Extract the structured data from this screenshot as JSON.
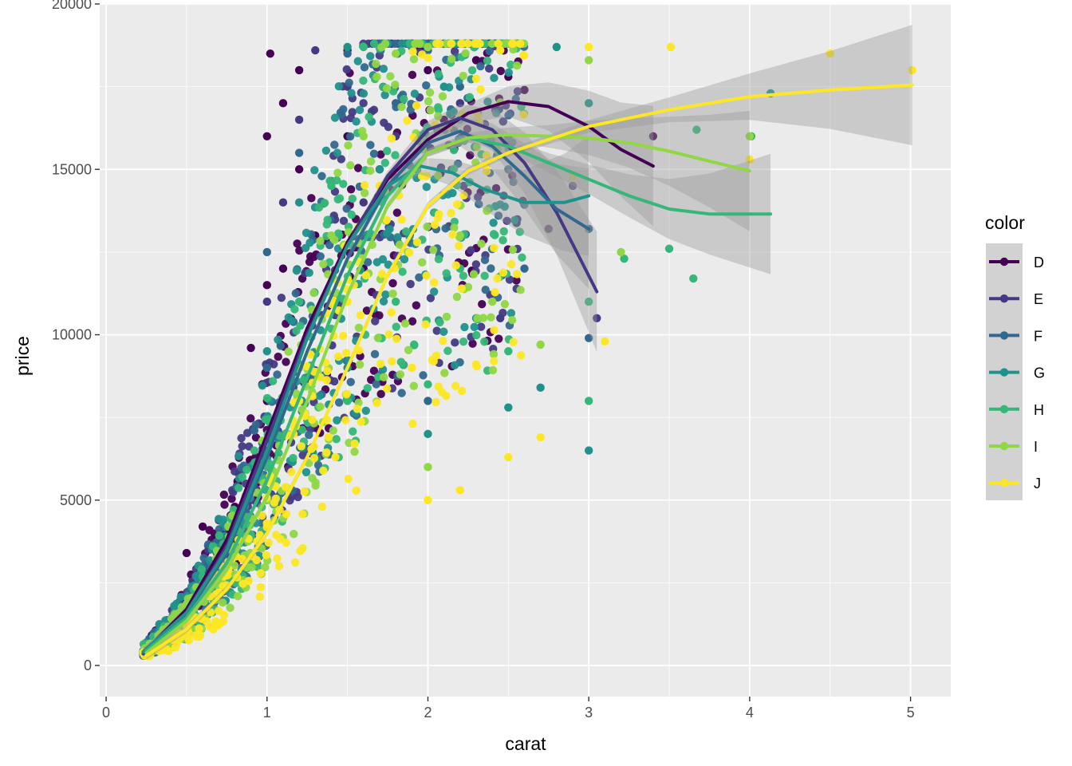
{
  "chart_data": {
    "type": "scatter",
    "xlabel": "carat",
    "ylabel": "price",
    "xlim": [
      -0.04,
      5.25
    ],
    "ylim": [
      -940,
      20000
    ],
    "x_ticks": [
      0,
      1,
      2,
      3,
      4,
      5
    ],
    "y_ticks": [
      0,
      5000,
      10000,
      15000,
      20000
    ],
    "x_tick_labels": [
      "0",
      "1",
      "2",
      "3",
      "4",
      "5"
    ],
    "y_tick_labels": [
      "0",
      "5000",
      "10000",
      "15000",
      "20000"
    ],
    "grid": true,
    "legend": {
      "title": "color",
      "position": "right"
    },
    "series": [
      {
        "name": "D",
        "color": "#440154",
        "points": [
          [
            0.23,
            380
          ],
          [
            0.3,
            600
          ],
          [
            0.4,
            1000
          ],
          [
            0.5,
            2000
          ],
          [
            0.5,
            3400
          ],
          [
            0.6,
            4200
          ],
          [
            0.7,
            3500
          ],
          [
            0.8,
            4800
          ],
          [
            0.9,
            6200
          ],
          [
            0.9,
            9600
          ],
          [
            1.0,
            5000
          ],
          [
            1.0,
            8000
          ],
          [
            1.0,
            11500
          ],
          [
            1.0,
            16000
          ],
          [
            1.02,
            18500
          ],
          [
            1.1,
            12000
          ],
          [
            1.1,
            17000
          ],
          [
            1.2,
            15000
          ],
          [
            1.2,
            18000
          ],
          [
            1.3,
            13000
          ],
          [
            1.5,
            16000
          ],
          [
            1.5,
            18600
          ],
          [
            1.6,
            12000
          ],
          [
            1.7,
            15000
          ],
          [
            2.0,
            18000
          ],
          [
            2.1,
            16500
          ],
          [
            2.3,
            18300
          ],
          [
            2.5,
            17800
          ],
          [
            2.6,
            17400
          ],
          [
            2.75,
            13200
          ],
          [
            3.4,
            16000
          ]
        ],
        "smooth": [
          [
            0.23,
            380
          ],
          [
            0.5,
            1700
          ],
          [
            0.75,
            3800
          ],
          [
            1.0,
            7000
          ],
          [
            1.25,
            10200
          ],
          [
            1.5,
            12800
          ],
          [
            1.75,
            14700
          ],
          [
            2.0,
            15900
          ],
          [
            2.25,
            16700
          ],
          [
            2.5,
            17050
          ],
          [
            2.75,
            16900
          ],
          [
            3.0,
            16300
          ],
          [
            3.2,
            15600
          ],
          [
            3.4,
            15100
          ]
        ]
      },
      {
        "name": "E",
        "color": "#443a83",
        "points": [
          [
            0.23,
            350
          ],
          [
            0.4,
            900
          ],
          [
            0.5,
            1500
          ],
          [
            0.7,
            2800
          ],
          [
            0.9,
            5000
          ],
          [
            1.0,
            7500
          ],
          [
            1.0,
            11000
          ],
          [
            1.1,
            14000
          ],
          [
            1.2,
            16500
          ],
          [
            1.3,
            18600
          ],
          [
            1.5,
            17500
          ],
          [
            1.6,
            14000
          ],
          [
            1.8,
            16000
          ],
          [
            2.0,
            18600
          ],
          [
            2.2,
            17000
          ],
          [
            2.45,
            10500
          ],
          [
            2.5,
            15800
          ],
          [
            2.9,
            14500
          ],
          [
            3.05,
            10500
          ]
        ],
        "smooth": [
          [
            0.23,
            350
          ],
          [
            0.5,
            1600
          ],
          [
            0.75,
            3600
          ],
          [
            1.0,
            6800
          ],
          [
            1.25,
            10000
          ],
          [
            1.5,
            12700
          ],
          [
            1.75,
            14800
          ],
          [
            2.0,
            16200
          ],
          [
            2.2,
            16550
          ],
          [
            2.4,
            16200
          ],
          [
            2.6,
            15200
          ],
          [
            2.8,
            13700
          ],
          [
            3.05,
            11300
          ]
        ]
      },
      {
        "name": "F",
        "color": "#31688e",
        "points": [
          [
            0.23,
            400
          ],
          [
            0.4,
            1100
          ],
          [
            0.5,
            1800
          ],
          [
            0.7,
            3000
          ],
          [
            0.9,
            5500
          ],
          [
            1.0,
            9000
          ],
          [
            1.0,
            12500
          ],
          [
            1.2,
            15500
          ],
          [
            1.5,
            18500
          ],
          [
            1.6,
            13000
          ],
          [
            1.8,
            17000
          ],
          [
            2.0,
            18600
          ],
          [
            2.0,
            8000
          ],
          [
            2.2,
            17500
          ],
          [
            2.5,
            15000
          ],
          [
            2.6,
            12000
          ],
          [
            3.0,
            9900
          ],
          [
            3.0,
            13200
          ]
        ],
        "smooth": [
          [
            0.23,
            400
          ],
          [
            0.5,
            1550
          ],
          [
            0.75,
            3400
          ],
          [
            1.0,
            6300
          ],
          [
            1.25,
            9500
          ],
          [
            1.5,
            12300
          ],
          [
            1.75,
            14500
          ],
          [
            2.0,
            15800
          ],
          [
            2.2,
            16150
          ],
          [
            2.4,
            15700
          ],
          [
            2.6,
            14800
          ],
          [
            2.8,
            13800
          ],
          [
            3.0,
            13200
          ]
        ]
      },
      {
        "name": "G",
        "color": "#21918c",
        "points": [
          [
            0.23,
            420
          ],
          [
            0.4,
            1000
          ],
          [
            0.5,
            1700
          ],
          [
            0.7,
            3200
          ],
          [
            0.9,
            6000
          ],
          [
            1.0,
            9500
          ],
          [
            1.2,
            14000
          ],
          [
            1.5,
            18700
          ],
          [
            1.5,
            9000
          ],
          [
            1.7,
            15000
          ],
          [
            1.9,
            18700
          ],
          [
            2.0,
            7000
          ],
          [
            2.1,
            17500
          ],
          [
            2.3,
            10500
          ],
          [
            2.5,
            7800
          ],
          [
            2.7,
            8400
          ],
          [
            2.8,
            18700
          ],
          [
            3.0,
            6500
          ],
          [
            3.0,
            17000
          ],
          [
            4.13,
            17300
          ]
        ],
        "smooth": [
          [
            0.23,
            420
          ],
          [
            0.5,
            1600
          ],
          [
            0.75,
            3500
          ],
          [
            1.0,
            6500
          ],
          [
            1.25,
            9900
          ],
          [
            1.5,
            12700
          ],
          [
            1.75,
            14500
          ],
          [
            1.95,
            15100
          ],
          [
            2.15,
            14900
          ],
          [
            2.35,
            14400
          ],
          [
            2.6,
            14000
          ],
          [
            2.85,
            14000
          ],
          [
            3.0,
            14200
          ]
        ]
      },
      {
        "name": "H",
        "color": "#35b779",
        "points": [
          [
            0.25,
            450
          ],
          [
            0.5,
            1500
          ],
          [
            0.7,
            2600
          ],
          [
            1.0,
            6000
          ],
          [
            1.2,
            11000
          ],
          [
            1.4,
            14500
          ],
          [
            1.5,
            8000
          ],
          [
            1.6,
            18700
          ],
          [
            1.8,
            11000
          ],
          [
            2.0,
            18700
          ],
          [
            2.0,
            8500
          ],
          [
            2.2,
            12000
          ],
          [
            2.5,
            9500
          ],
          [
            3.0,
            8000
          ],
          [
            3.0,
            11000
          ],
          [
            3.22,
            12300
          ],
          [
            3.5,
            12600
          ],
          [
            3.65,
            11700
          ],
          [
            3.67,
            16200
          ],
          [
            4.01,
            16000
          ]
        ],
        "smooth": [
          [
            0.25,
            450
          ],
          [
            0.5,
            1450
          ],
          [
            0.75,
            3100
          ],
          [
            1.0,
            5600
          ],
          [
            1.25,
            8700
          ],
          [
            1.5,
            11800
          ],
          [
            1.75,
            14200
          ],
          [
            2.0,
            15500
          ],
          [
            2.25,
            15950
          ],
          [
            2.5,
            15700
          ],
          [
            2.75,
            15200
          ],
          [
            3.0,
            14700
          ],
          [
            3.25,
            14200
          ],
          [
            3.5,
            13800
          ],
          [
            3.75,
            13650
          ],
          [
            4.13,
            13650
          ]
        ]
      },
      {
        "name": "I",
        "color": "#8fd744",
        "points": [
          [
            0.25,
            380
          ],
          [
            0.5,
            1300
          ],
          [
            0.7,
            2400
          ],
          [
            1.0,
            5000
          ],
          [
            1.2,
            9000
          ],
          [
            1.4,
            13000
          ],
          [
            1.6,
            16000
          ],
          [
            1.8,
            18500
          ],
          [
            2.0,
            18700
          ],
          [
            2.0,
            6000
          ],
          [
            2.2,
            13000
          ],
          [
            2.4,
            11000
          ],
          [
            2.7,
            9700
          ],
          [
            3.0,
            18300
          ],
          [
            3.2,
            12500
          ],
          [
            4.0,
            16000
          ]
        ],
        "smooth": [
          [
            0.25,
            380
          ],
          [
            0.5,
            1350
          ],
          [
            0.75,
            2900
          ],
          [
            1.0,
            5100
          ],
          [
            1.25,
            8000
          ],
          [
            1.5,
            11200
          ],
          [
            1.75,
            13900
          ],
          [
            2.0,
            15500
          ],
          [
            2.25,
            15950
          ],
          [
            2.5,
            16050
          ],
          [
            2.75,
            16000
          ],
          [
            3.0,
            15950
          ],
          [
            3.25,
            15800
          ],
          [
            3.5,
            15550
          ],
          [
            3.75,
            15250
          ],
          [
            4.0,
            14950
          ]
        ]
      },
      {
        "name": "J",
        "color": "#fde725",
        "points": [
          [
            0.25,
            350
          ],
          [
            0.5,
            1200
          ],
          [
            0.7,
            2200
          ],
          [
            1.0,
            4300
          ],
          [
            1.2,
            8000
          ],
          [
            1.5,
            11000
          ],
          [
            1.7,
            14500
          ],
          [
            1.9,
            9000
          ],
          [
            2.0,
            5000
          ],
          [
            2.2,
            5300
          ],
          [
            2.3,
            9100
          ],
          [
            2.45,
            18600
          ],
          [
            2.5,
            6300
          ],
          [
            2.7,
            6900
          ],
          [
            2.9,
            14800
          ],
          [
            3.0,
            18700
          ],
          [
            3.1,
            9800
          ],
          [
            3.51,
            18700
          ],
          [
            4.0,
            15300
          ],
          [
            4.5,
            18500
          ],
          [
            5.01,
            18000
          ]
        ],
        "smooth": [
          [
            0.25,
            300
          ],
          [
            0.5,
            1100
          ],
          [
            0.75,
            2300
          ],
          [
            1.0,
            4000
          ],
          [
            1.25,
            6300
          ],
          [
            1.5,
            9000
          ],
          [
            1.75,
            11800
          ],
          [
            2.0,
            13900
          ],
          [
            2.25,
            14950
          ],
          [
            2.5,
            15500
          ],
          [
            2.75,
            15900
          ],
          [
            3.0,
            16300
          ],
          [
            3.5,
            16800
          ],
          [
            4.0,
            17200
          ],
          [
            4.5,
            17400
          ],
          [
            5.01,
            17550
          ]
        ]
      }
    ]
  }
}
